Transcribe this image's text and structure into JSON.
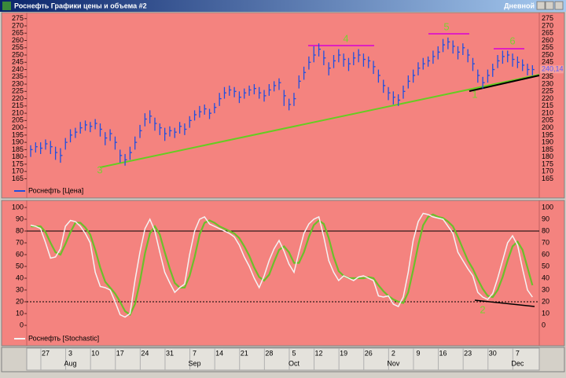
{
  "window_title": "Роснефть Графики цены и объема #2",
  "timeframe": "Дневной",
  "chart_data": [
    {
      "type": "ohlc",
      "ylim": [
        162,
        277
      ],
      "yticks": [
        165,
        170,
        175,
        180,
        185,
        190,
        195,
        200,
        205,
        210,
        215,
        220,
        225,
        230,
        235,
        240,
        245,
        250,
        255,
        260,
        265,
        270,
        275
      ],
      "last_value": 240.14,
      "last_value_label": "240,14",
      "annotations": [
        "3",
        "4",
        "5",
        "6",
        "1"
      ],
      "series": [
        {
          "name": "Роснефть [Цена]",
          "color": "#1f4fe0",
          "high": [
            188,
            190,
            190,
            192,
            191,
            187,
            186,
            193,
            199,
            200,
            204,
            205,
            204,
            206,
            203,
            197,
            199,
            194,
            185,
            182,
            187,
            194,
            202,
            210,
            212,
            207,
            203,
            200,
            201,
            200,
            204,
            203,
            208,
            212,
            215,
            216,
            213,
            217,
            224,
            228,
            229,
            228,
            225,
            227,
            229,
            230,
            228,
            226,
            230,
            232,
            234,
            226,
            220,
            224,
            236,
            242,
            249,
            256,
            258,
            253,
            245,
            250,
            254,
            251,
            248,
            252,
            254,
            251,
            249,
            246,
            240,
            233,
            228,
            225,
            223,
            229,
            236,
            240,
            245,
            248,
            249,
            253,
            256,
            261,
            262,
            260,
            256,
            258,
            254,
            248,
            240,
            235,
            240,
            244,
            250,
            253,
            253,
            251,
            249,
            247,
            244,
            243
          ],
          "low": [
            180,
            183,
            182,
            185,
            182,
            178,
            176,
            185,
            190,
            193,
            196,
            198,
            197,
            199,
            194,
            188,
            191,
            185,
            176,
            174,
            178,
            185,
            193,
            201,
            203,
            198,
            195,
            191,
            194,
            193,
            196,
            195,
            200,
            205,
            207,
            209,
            206,
            210,
            215,
            220,
            222,
            221,
            217,
            220,
            222,
            223,
            220,
            218,
            222,
            225,
            226,
            215,
            212,
            215,
            227,
            233,
            240,
            245,
            249,
            243,
            236,
            241,
            245,
            242,
            239,
            243,
            245,
            242,
            241,
            237,
            231,
            224,
            219,
            216,
            215,
            220,
            227,
            231,
            236,
            240,
            242,
            244,
            247,
            252,
            254,
            251,
            247,
            250,
            245,
            239,
            231,
            227,
            231,
            235,
            241,
            244,
            245,
            242,
            241,
            239,
            236,
            236
          ],
          "close": [
            185,
            187,
            186,
            189,
            187,
            183,
            181,
            190,
            195,
            197,
            200,
            202,
            201,
            203,
            199,
            193,
            196,
            190,
            181,
            178,
            183,
            190,
            198,
            206,
            208,
            203,
            200,
            196,
            198,
            197,
            201,
            199,
            205,
            209,
            211,
            213,
            210,
            214,
            220,
            224,
            226,
            225,
            221,
            224,
            226,
            227,
            224,
            222,
            226,
            229,
            231,
            222,
            216,
            220,
            232,
            238,
            245,
            250,
            254,
            248,
            241,
            246,
            250,
            247,
            244,
            248,
            250,
            247,
            246,
            242,
            236,
            229,
            224,
            221,
            219,
            225,
            232,
            236,
            241,
            244,
            246,
            249,
            252,
            257,
            259,
            256,
            252,
            255,
            250,
            244,
            236,
            231,
            236,
            240,
            246,
            249,
            250,
            247,
            245,
            243,
            240,
            240
          ]
        }
      ]
    },
    {
      "type": "line",
      "ylim": [
        -5,
        105
      ],
      "yticks": [
        0,
        10,
        20,
        30,
        40,
        50,
        60,
        70,
        80,
        90,
        100
      ],
      "levels": [
        80,
        20
      ],
      "annotations": [
        "2"
      ],
      "categories": [
        null,
        null,
        null,
        "27",
        null,
        null,
        null,
        null,
        "3",
        null,
        null,
        null,
        null,
        "10",
        null,
        null,
        null,
        null,
        "17",
        null,
        null,
        null,
        null,
        "24",
        null,
        null,
        null,
        null,
        "31",
        null,
        null,
        null,
        null,
        "7",
        null,
        null,
        null,
        null,
        "14",
        null,
        null,
        null,
        null,
        "21",
        null,
        null,
        null,
        null,
        "28",
        null,
        null,
        null,
        null,
        "5",
        null,
        null,
        null,
        null,
        "12",
        null,
        null,
        null,
        null,
        "19",
        null,
        null,
        null,
        null,
        "26",
        null,
        null,
        null,
        null,
        "2",
        null,
        null,
        null,
        null,
        "9",
        null,
        null,
        null,
        null,
        "16",
        null,
        null,
        null,
        null,
        "23",
        null,
        null,
        null,
        null,
        "30",
        null,
        null,
        null,
        null,
        "7",
        null,
        null,
        null
      ],
      "months": [
        "Aug",
        "Sep",
        "Oct",
        "Nov",
        "Dec"
      ],
      "series": [
        {
          "name": "Роснефть [Stochastic]",
          "color": "#f4f4f4",
          "values": [
            85,
            84,
            82,
            70,
            57,
            58,
            65,
            84,
            89,
            88,
            84,
            78,
            70,
            45,
            33,
            32,
            30,
            20,
            9,
            7,
            10,
            38,
            62,
            82,
            90,
            80,
            62,
            45,
            36,
            28,
            32,
            35,
            60,
            80,
            90,
            92,
            86,
            84,
            82,
            80,
            78,
            75,
            68,
            58,
            50,
            40,
            32,
            42,
            55,
            65,
            72,
            63,
            52,
            45,
            62,
            78,
            86,
            90,
            92,
            75,
            55,
            45,
            38,
            42,
            40,
            38,
            41,
            42,
            40,
            38,
            25,
            24,
            25,
            18,
            16,
            24,
            45,
            72,
            88,
            95,
            94,
            92,
            91,
            90,
            84,
            78,
            62,
            55,
            48,
            42,
            28,
            24,
            22,
            27,
            40,
            55,
            70,
            76,
            68,
            48,
            30,
            24
          ]
        },
        {
          "color": "#6cbf2a",
          "values": [
            84,
            84,
            84,
            79,
            70,
            62,
            60,
            69,
            79,
            87,
            87,
            83,
            77,
            64,
            49,
            37,
            32,
            27,
            20,
            12,
            9,
            18,
            37,
            61,
            78,
            84,
            77,
            62,
            48,
            36,
            32,
            32,
            42,
            58,
            77,
            87,
            89,
            87,
            84,
            82,
            80,
            78,
            74,
            67,
            59,
            49,
            41,
            38,
            43,
            54,
            64,
            67,
            62,
            53,
            53,
            62,
            75,
            85,
            89,
            86,
            74,
            58,
            46,
            42,
            40,
            40,
            40,
            40,
            41,
            40,
            34,
            29,
            25,
            22,
            20,
            19,
            28,
            47,
            68,
            85,
            92,
            94,
            92,
            91,
            88,
            84,
            75,
            65,
            55,
            48,
            39,
            31,
            25,
            24,
            30,
            41,
            55,
            67,
            71,
            64,
            49,
            34
          ]
        }
      ]
    }
  ]
}
